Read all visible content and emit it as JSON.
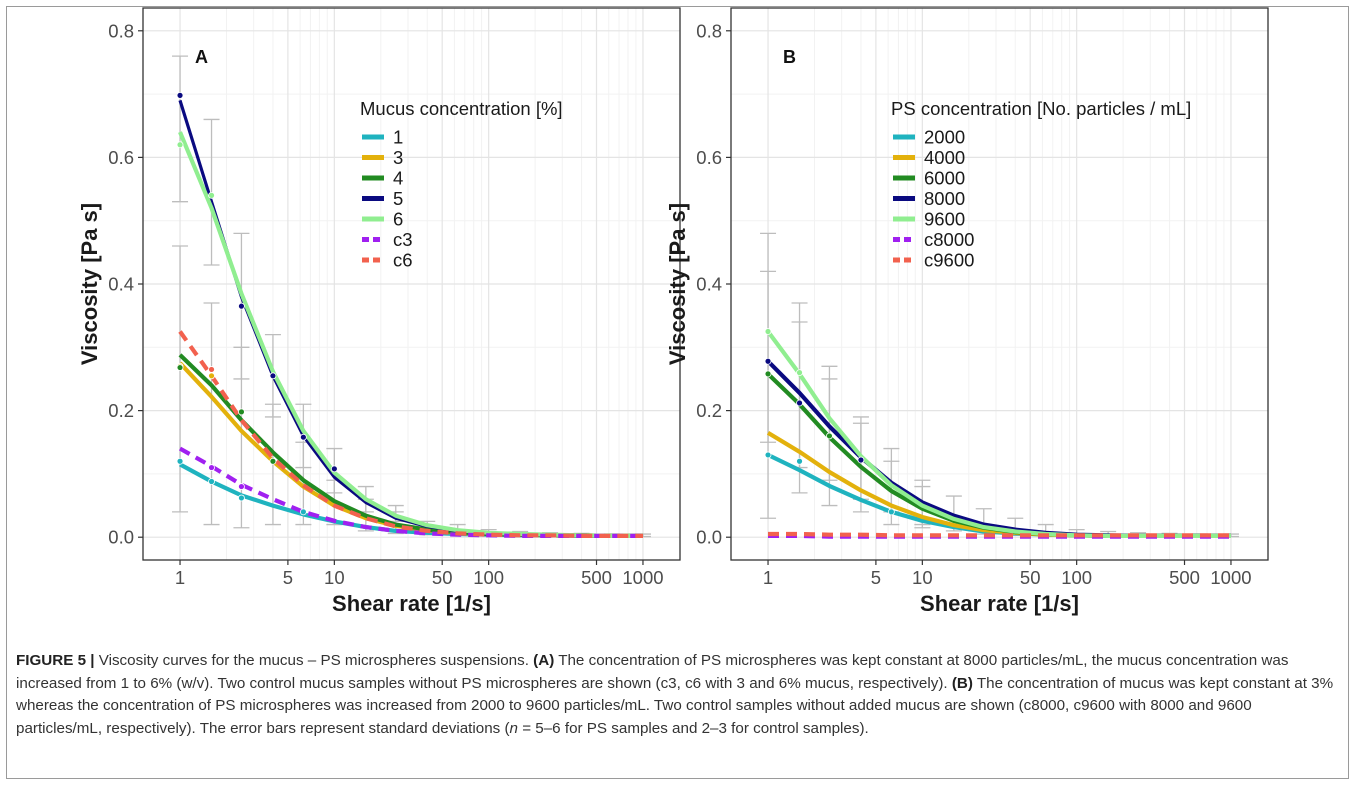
{
  "figure": {
    "caption_label": "FIGURE 5 |",
    "caption_intro": " Viscosity curves for the mucus – PS microspheres suspensions. ",
    "caption_a_label": "(A)",
    "caption_a_text": " The concentration of PS microspheres was kept constant at 8000 particles/mL, the mucus concentration was increased from 1 to 6% (w/v). Two control mucus samples without PS microspheres are shown (c3, c6 with 3 and 6% mucus, respectively). ",
    "caption_b_label": "(B)",
    "caption_b_text_1": " The concentration of mucus was kept constant at 3% whereas the concentration of PS microspheres was increased from 2000 to 9600 particles/mL. Two control samples without added mucus are shown (c8000, c9600 with 8000 and 9600 particles/mL, respectively). The error bars represent standard deviations (",
    "caption_b_n": "n",
    "caption_b_text_2": " = 5–6 for PS samples and 2–3 for control samples)."
  },
  "chart_data": [
    {
      "type": "line",
      "panel_label": "A",
      "xlabel": "Shear rate [1/s]",
      "ylabel": "Viscosity [Pa s]",
      "x_scale": "log",
      "xlim": [
        1,
        1000
      ],
      "ylim": [
        0,
        0.8
      ],
      "x_ticks": [
        1,
        5,
        10,
        50,
        100,
        500,
        1000
      ],
      "x_tick_labels": [
        "1",
        "5",
        "10",
        "50",
        "100",
        "500",
        "1000"
      ],
      "y_ticks": [
        0.0,
        0.2,
        0.4,
        0.6,
        0.8
      ],
      "y_tick_labels": [
        "0.0",
        "0.2",
        "0.4",
        "0.6",
        "0.8"
      ],
      "grid": true,
      "legend_title": "Mucus concentration [%]",
      "legend_position": "top-right",
      "x": [
        1,
        1.6,
        2.5,
        4,
        6.3,
        10,
        16,
        25,
        40,
        63,
        100,
        160,
        250,
        400,
        630,
        1000
      ],
      "series": [
        {
          "name": "1",
          "color": "#1fb3bf",
          "dashed": false,
          "values": [
            0.115,
            0.088,
            0.066,
            0.05,
            0.036,
            0.025,
            0.016,
            0.01,
            0.007,
            0.005,
            0.004,
            0.003,
            0.003,
            0.002,
            0.002,
            0.002
          ]
        },
        {
          "name": "3",
          "color": "#e3b10c",
          "dashed": false,
          "values": [
            0.275,
            0.222,
            0.168,
            0.12,
            0.08,
            0.05,
            0.03,
            0.018,
            0.011,
            0.007,
            0.005,
            0.004,
            0.003,
            0.003,
            0.002,
            0.002
          ]
        },
        {
          "name": "4",
          "color": "#228b22",
          "dashed": false,
          "values": [
            0.288,
            0.24,
            0.185,
            0.134,
            0.09,
            0.057,
            0.034,
            0.02,
            0.012,
            0.008,
            0.005,
            0.004,
            0.003,
            0.003,
            0.002,
            0.002
          ]
        },
        {
          "name": "5",
          "color": "#0a0a80",
          "dashed": false,
          "values": [
            0.69,
            0.53,
            0.38,
            0.255,
            0.16,
            0.095,
            0.055,
            0.03,
            0.017,
            0.01,
            0.006,
            0.004,
            0.003,
            0.003,
            0.002,
            0.002
          ]
        },
        {
          "name": "6",
          "color": "#90ee90",
          "dashed": false,
          "values": [
            0.64,
            0.52,
            0.385,
            0.262,
            0.168,
            0.102,
            0.06,
            0.034,
            0.019,
            0.011,
            0.007,
            0.005,
            0.004,
            0.003,
            0.002,
            0.002
          ]
        },
        {
          "name": "c3",
          "color": "#a020f0",
          "dashed": true,
          "values": [
            0.14,
            0.112,
            0.083,
            0.06,
            0.04,
            0.026,
            0.016,
            0.01,
            0.006,
            0.004,
            0.003,
            0.002,
            0.002,
            0.002,
            0.002,
            0.002
          ]
        },
        {
          "name": "c6",
          "color": "#f2614e",
          "dashed": true,
          "values": [
            0.325,
            0.255,
            0.185,
            0.125,
            0.082,
            0.05,
            0.03,
            0.017,
            0.01,
            0.006,
            0.004,
            0.003,
            0.003,
            0.002,
            0.002,
            0.002
          ]
        }
      ],
      "points": [
        {
          "series": "1",
          "x": 1,
          "y": 0.12
        },
        {
          "series": "1",
          "x": 1.6,
          "y": 0.088
        },
        {
          "series": "1",
          "x": 2.5,
          "y": 0.062
        },
        {
          "series": "1",
          "x": 6.3,
          "y": 0.04
        },
        {
          "series": "3",
          "x": 1,
          "y": 0.27
        },
        {
          "series": "3",
          "x": 1.6,
          "y": 0.255
        },
        {
          "series": "4",
          "x": 1,
          "y": 0.268
        },
        {
          "series": "4",
          "x": 2.5,
          "y": 0.198
        },
        {
          "series": "4",
          "x": 4,
          "y": 0.12
        },
        {
          "series": "5",
          "x": 1,
          "y": 0.698
        },
        {
          "series": "5",
          "x": 2.5,
          "y": 0.365
        },
        {
          "series": "5",
          "x": 4,
          "y": 0.255
        },
        {
          "series": "5",
          "x": 6.3,
          "y": 0.158
        },
        {
          "series": "5",
          "x": 10,
          "y": 0.108
        },
        {
          "series": "6",
          "x": 1,
          "y": 0.62
        },
        {
          "series": "6",
          "x": 1.6,
          "y": 0.54
        },
        {
          "series": "c3",
          "x": 1.6,
          "y": 0.11
        },
        {
          "series": "c3",
          "x": 2.5,
          "y": 0.08
        },
        {
          "series": "c6",
          "x": 1.6,
          "y": 0.265
        }
      ],
      "error_bars": [
        {
          "x": 1,
          "low": 0.04,
          "high": 0.46
        },
        {
          "x": 1,
          "low": 0.53,
          "high": 0.76
        },
        {
          "x": 1.6,
          "low": 0.02,
          "high": 0.37
        },
        {
          "x": 1.6,
          "low": 0.43,
          "high": 0.66
        },
        {
          "x": 2.5,
          "low": 0.015,
          "high": 0.3
        },
        {
          "x": 2.5,
          "low": 0.25,
          "high": 0.48
        },
        {
          "x": 4,
          "low": 0.02,
          "high": 0.21
        },
        {
          "x": 4,
          "low": 0.19,
          "high": 0.32
        },
        {
          "x": 6.3,
          "low": 0.02,
          "high": 0.15
        },
        {
          "x": 6.3,
          "low": 0.11,
          "high": 0.21
        },
        {
          "x": 10,
          "low": 0.02,
          "high": 0.09
        },
        {
          "x": 10,
          "low": 0.07,
          "high": 0.14
        },
        {
          "x": 16,
          "low": 0.01,
          "high": 0.06
        },
        {
          "x": 16,
          "low": 0.04,
          "high": 0.08
        },
        {
          "x": 25,
          "low": 0.006,
          "high": 0.04
        },
        {
          "x": 25,
          "low": 0.025,
          "high": 0.05
        },
        {
          "x": 40,
          "low": 0.004,
          "high": 0.025
        },
        {
          "x": 63,
          "low": 0.003,
          "high": 0.02
        },
        {
          "x": 100,
          "low": 0.002,
          "high": 0.012
        },
        {
          "x": 160,
          "low": 0.001,
          "high": 0.009
        },
        {
          "x": 250,
          "low": 0.001,
          "high": 0.007
        },
        {
          "x": 400,
          "low": 0.001,
          "high": 0.006
        },
        {
          "x": 630,
          "low": 0.001,
          "high": 0.005
        },
        {
          "x": 1000,
          "low": 0.001,
          "high": 0.005
        }
      ]
    },
    {
      "type": "line",
      "panel_label": "B",
      "xlabel": "Shear rate [1/s]",
      "ylabel": "Viscosity [Pa s]",
      "x_scale": "log",
      "xlim": [
        1,
        1000
      ],
      "ylim": [
        0,
        0.8
      ],
      "x_ticks": [
        1,
        5,
        10,
        50,
        100,
        500,
        1000
      ],
      "x_tick_labels": [
        "1",
        "5",
        "10",
        "50",
        "100",
        "500",
        "1000"
      ],
      "y_ticks": [
        0.0,
        0.2,
        0.4,
        0.6,
        0.8
      ],
      "y_tick_labels": [
        "0.0",
        "0.2",
        "0.4",
        "0.6",
        "0.8"
      ],
      "grid": true,
      "legend_title": "PS concentration [No. particles / mL]",
      "legend_position": "top-right",
      "x": [
        1,
        1.6,
        2.5,
        4,
        6.3,
        10,
        16,
        25,
        40,
        63,
        100,
        160,
        250,
        400,
        630,
        1000
      ],
      "series": [
        {
          "name": "2000",
          "color": "#1fb3bf",
          "dashed": false,
          "values": [
            0.13,
            0.106,
            0.081,
            0.059,
            0.04,
            0.026,
            0.016,
            0.009,
            0.006,
            0.004,
            0.003,
            0.002,
            0.002,
            0.002,
            0.002,
            0.002
          ]
        },
        {
          "name": "4000",
          "color": "#e3b10c",
          "dashed": false,
          "values": [
            0.165,
            0.135,
            0.103,
            0.074,
            0.05,
            0.032,
            0.019,
            0.011,
            0.007,
            0.004,
            0.003,
            0.002,
            0.002,
            0.002,
            0.002,
            0.002
          ]
        },
        {
          "name": "6000",
          "color": "#228b22",
          "dashed": false,
          "values": [
            0.258,
            0.21,
            0.158,
            0.111,
            0.073,
            0.045,
            0.026,
            0.015,
            0.008,
            0.005,
            0.003,
            0.002,
            0.002,
            0.002,
            0.002,
            0.002
          ]
        },
        {
          "name": "8000",
          "color": "#0a0a80",
          "dashed": false,
          "values": [
            0.278,
            0.228,
            0.175,
            0.126,
            0.086,
            0.055,
            0.034,
            0.02,
            0.012,
            0.007,
            0.004,
            0.003,
            0.002,
            0.002,
            0.002,
            0.002
          ]
        },
        {
          "name": "9600",
          "color": "#90ee90",
          "dashed": false,
          "values": [
            0.325,
            0.258,
            0.188,
            0.128,
            0.082,
            0.05,
            0.029,
            0.016,
            0.009,
            0.005,
            0.003,
            0.002,
            0.002,
            0.002,
            0.002,
            0.002
          ]
        },
        {
          "name": "c8000",
          "color": "#a020f0",
          "dashed": true,
          "values": [
            0.002,
            0.002,
            0.001,
            0.001,
            0.001,
            0.001,
            0.001,
            0.001,
            0.001,
            0.001,
            0.001,
            0.001,
            0.001,
            0.001,
            0.001,
            0.001
          ]
        },
        {
          "name": "c9600",
          "color": "#f2614e",
          "dashed": true,
          "values": [
            0.005,
            0.005,
            0.004,
            0.004,
            0.003,
            0.003,
            0.003,
            0.003,
            0.003,
            0.003,
            0.003,
            0.003,
            0.003,
            0.003,
            0.003,
            0.003
          ]
        }
      ],
      "points": [
        {
          "series": "2000",
          "x": 1,
          "y": 0.13
        },
        {
          "series": "2000",
          "x": 1.6,
          "y": 0.12
        },
        {
          "series": "2000",
          "x": 6.3,
          "y": 0.04
        },
        {
          "series": "6000",
          "x": 1,
          "y": 0.258
        },
        {
          "series": "6000",
          "x": 2.5,
          "y": 0.16
        },
        {
          "series": "8000",
          "x": 1,
          "y": 0.278
        },
        {
          "series": "8000",
          "x": 1.6,
          "y": 0.212
        },
        {
          "series": "8000",
          "x": 4,
          "y": 0.122
        },
        {
          "series": "9600",
          "x": 1,
          "y": 0.325
        },
        {
          "series": "9600",
          "x": 1.6,
          "y": 0.26
        }
      ],
      "error_bars": [
        {
          "x": 1,
          "low": 0.03,
          "high": 0.48
        },
        {
          "x": 1,
          "low": 0.15,
          "high": 0.42
        },
        {
          "x": 1.6,
          "low": 0.07,
          "high": 0.37
        },
        {
          "x": 1.6,
          "low": 0.11,
          "high": 0.34
        },
        {
          "x": 2.5,
          "low": 0.05,
          "high": 0.27
        },
        {
          "x": 2.5,
          "low": 0.09,
          "high": 0.25
        },
        {
          "x": 4,
          "low": 0.04,
          "high": 0.19
        },
        {
          "x": 4,
          "low": 0.06,
          "high": 0.18
        },
        {
          "x": 6.3,
          "low": 0.02,
          "high": 0.14
        },
        {
          "x": 6.3,
          "low": 0.04,
          "high": 0.12
        },
        {
          "x": 10,
          "low": 0.015,
          "high": 0.09
        },
        {
          "x": 10,
          "low": 0.02,
          "high": 0.08
        },
        {
          "x": 16,
          "low": 0.01,
          "high": 0.065
        },
        {
          "x": 25,
          "low": 0.005,
          "high": 0.045
        },
        {
          "x": 40,
          "low": 0.003,
          "high": 0.03
        },
        {
          "x": 63,
          "low": 0.002,
          "high": 0.02
        },
        {
          "x": 100,
          "low": 0.001,
          "high": 0.012
        },
        {
          "x": 160,
          "low": 0.001,
          "high": 0.009
        },
        {
          "x": 250,
          "low": 0.001,
          "high": 0.007
        },
        {
          "x": 400,
          "low": 0.001,
          "high": 0.006
        },
        {
          "x": 630,
          "low": 0.001,
          "high": 0.005
        },
        {
          "x": 1000,
          "low": 0.001,
          "high": 0.005
        }
      ]
    }
  ]
}
